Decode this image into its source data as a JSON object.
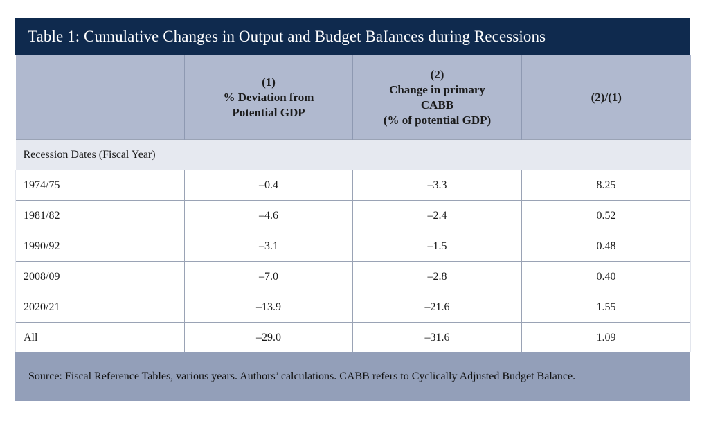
{
  "title": "Table 1: Cumulative Changes in Output and Budget BaIances during Recessions",
  "header": {
    "col0": "",
    "col1": [
      "(1)",
      "% Deviation from",
      "Potential GDP"
    ],
    "col2": [
      "(2)",
      "Change in primary",
      "CABB",
      "(% of potential GDP)"
    ],
    "col3": [
      "(2)/(1)"
    ]
  },
  "section_label": "Recession Dates (Fiscal Year)",
  "rows": [
    {
      "label": "1974/75",
      "dev": "–0.4",
      "cabb": "–3.3",
      "ratio": "8.25"
    },
    {
      "label": "1981/82",
      "dev": "–4.6",
      "cabb": "–2.4",
      "ratio": "0.52"
    },
    {
      "label": "1990/92",
      "dev": "–3.1",
      "cabb": "–1.5",
      "ratio": "0.48"
    },
    {
      "label": "2008/09",
      "dev": "–7.0",
      "cabb": "–2.8",
      "ratio": "0.40"
    },
    {
      "label": "2020/21",
      "dev": "–13.9",
      "cabb": "–21.6",
      "ratio": "1.55"
    },
    {
      "label": "All",
      "dev": "–29.0",
      "cabb": "–31.6",
      "ratio": "1.09"
    }
  ],
  "footer": "Source: Fiscal Reference Tables, various years. Authors’ calculations. CABB refers to Cyclically Adjusted Budget Balance.",
  "colors": {
    "title_bg": "#0f2a4e",
    "header_bg": "#b0b9cf",
    "section_bg": "#e6e9f0",
    "footer_bg": "#939fb9"
  }
}
